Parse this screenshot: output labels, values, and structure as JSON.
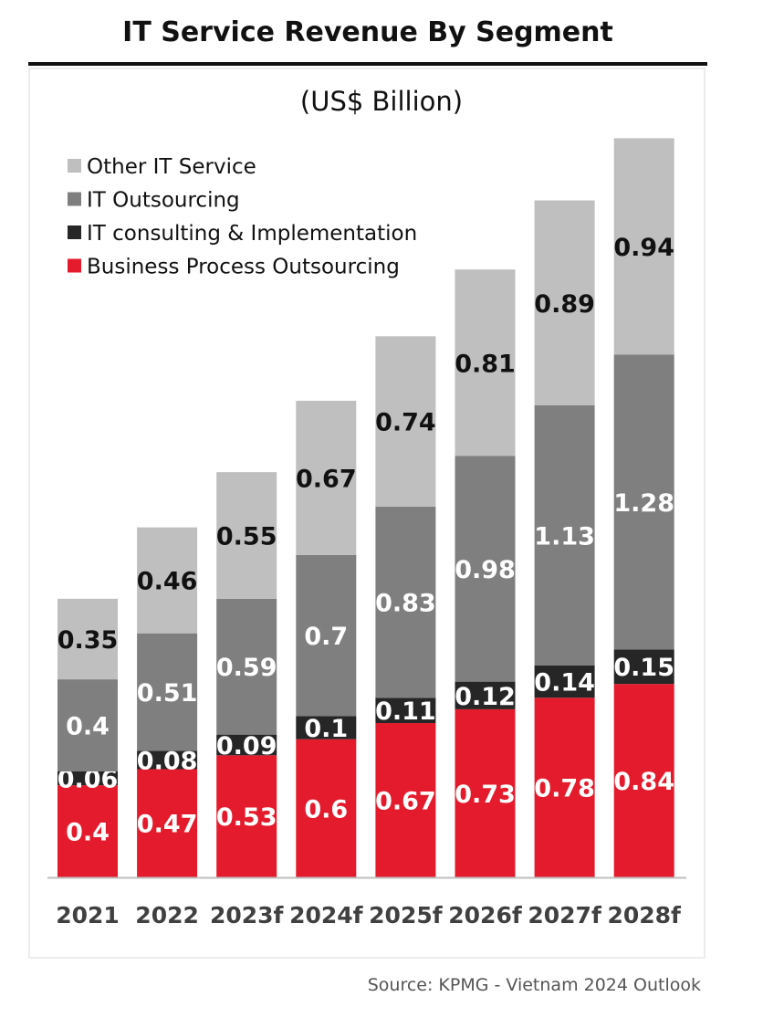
{
  "title": "IT Service Revenue By Segment",
  "subtitle": "(US$ Billion)",
  "source": "Source: KPMG - Vietnam 2024 Outlook",
  "chart_data": {
    "type": "bar",
    "stacked": true,
    "categories": [
      "2021",
      "2022",
      "2023f",
      "2024f",
      "2025f",
      "2026f",
      "2027f",
      "2028f"
    ],
    "series": [
      {
        "name": "Business Process Outsourcing",
        "color": "#e41b2c",
        "label_color": "#ffffff",
        "values": [
          0.4,
          0.47,
          0.53,
          0.6,
          0.67,
          0.73,
          0.78,
          0.84
        ]
      },
      {
        "name": "IT consulting & Implementation",
        "color": "#262626",
        "label_color": "#ffffff",
        "values": [
          0.06,
          0.08,
          0.09,
          0.1,
          0.11,
          0.12,
          0.14,
          0.15
        ]
      },
      {
        "name": "IT Outsourcing",
        "color": "#7f7f7f",
        "label_color": "#ffffff",
        "values": [
          0.4,
          0.51,
          0.59,
          0.7,
          0.83,
          0.98,
          1.13,
          1.28
        ]
      },
      {
        "name": "Other IT Service",
        "color": "#bfbfbf",
        "label_color": "#111111",
        "values": [
          0.35,
          0.46,
          0.55,
          0.67,
          0.74,
          0.81,
          0.89,
          0.94
        ]
      }
    ],
    "legend": {
      "placement": "top-left",
      "order": [
        "Other IT Service",
        "IT Outsourcing",
        "IT consulting & Implementation",
        "Business Process Outsourcing"
      ]
    },
    "grid": false,
    "xlabel": "",
    "ylabel": ""
  }
}
